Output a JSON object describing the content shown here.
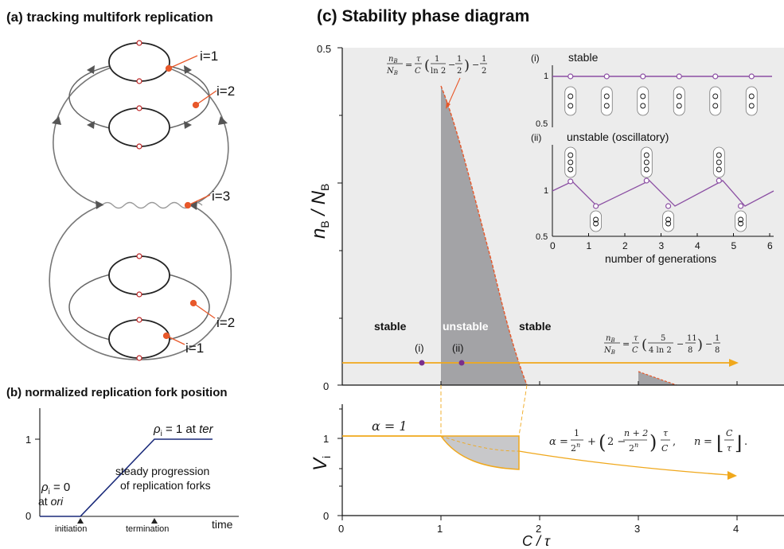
{
  "panel_a": {
    "title": "(a)  tracking multifork replication",
    "labels": [
      "i=1",
      "i=2",
      "i=3",
      "i=2",
      "i=1"
    ]
  },
  "panel_b": {
    "title": "(b) normalized replication fork position",
    "y_ticks": [
      "0",
      "1"
    ],
    "rho_label": "ρ",
    "rho_sub": "i",
    "rho_start_text": " = 0",
    "rho_start_at": "at ",
    "rho_start_ori": "ori",
    "rho_end_text": " = 1 at ",
    "rho_end_ter": "ter",
    "steady_line1": "steady progression",
    "steady_line2": "of replication forks",
    "x_initiation": "initiation",
    "x_termination": "termination",
    "x_time": "time"
  },
  "panel_c": {
    "title": "(c) Stability phase diagram",
    "ylabel_top_n": "n",
    "ylabel_top_sub": "B",
    "ylabel_top_mid": " / N",
    "ylabel_top_sub2": "B",
    "ylabel_bottom": "V",
    "ylabel_bottom_sub": "i",
    "xlabel": "C / τ",
    "y_ticks_top": [
      "0.5",
      "0"
    ],
    "y_ticks_bottom": [
      "1",
      "0"
    ],
    "x_ticks": [
      "0",
      "1",
      "2",
      "3",
      "4"
    ],
    "region_stable_left": "stable",
    "region_unstable": "unstable",
    "region_stable_right": "stable",
    "point_i": "(i)",
    "point_ii": "(ii)",
    "alpha_label": "α = 1",
    "eq_top_lhs": "n_B / N_B",
    "eq_top_rhs": "= τ/C (1/ln2 − 1/2) − 1/2",
    "eq_mid_rhs": "= τ/C (5/(4 ln2) − 11/8) − 1/8",
    "eq_alpha": "α = 1/2ⁿ + (2 − (n+2)/2ⁿ) τ/C,   n = ⌊C/τ⌋."
  },
  "inset": {
    "label_i": "(i)",
    "label_i_text": "stable",
    "label_ii": "(ii)",
    "label_ii_text": "unstable (oscillatory)",
    "y_ticks_i": [
      "1",
      "0.5"
    ],
    "y_ticks_ii": [
      "1",
      "0.5"
    ],
    "x_ticks": [
      "0",
      "1",
      "2",
      "3",
      "4",
      "5",
      "6"
    ],
    "xlabel": "number of generations"
  },
  "colors": {
    "orange": "#f0a81c",
    "red": "#e8582a",
    "purple": "#8b4fa3",
    "gray_fill": "#a3a3a6",
    "bg_gray": "#ececec",
    "navy": "#1a2a7a"
  }
}
